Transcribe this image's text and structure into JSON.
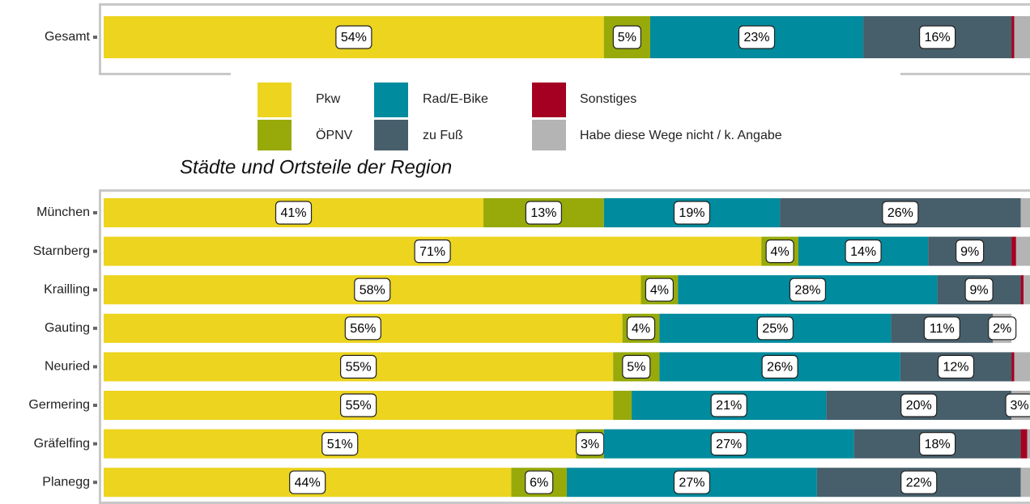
{
  "chart_data": [
    {
      "type": "stacked-bar-horizontal",
      "categories": [
        "Gesamt"
      ],
      "xlim": [
        0,
        100
      ],
      "series": [
        {
          "name": "Pkw",
          "color": "#ecd41f",
          "values": [
            54
          ],
          "value_labels": [
            "54%"
          ]
        },
        {
          "name": "ÖPNV",
          "color": "#97aa0a",
          "values": [
            5
          ],
          "value_labels": [
            "5%"
          ]
        },
        {
          "name": "Rad/E-Bike",
          "color": "#008b9e",
          "values": [
            23
          ],
          "value_labels": [
            "23%"
          ]
        },
        {
          "name": "zu Fuß",
          "color": "#475f6b",
          "values": [
            16
          ],
          "value_labels": [
            "16%"
          ]
        },
        {
          "name": "Sonstiges",
          "color": "#a50021",
          "values": [
            0.3
          ],
          "value_labels": [
            null
          ]
        },
        {
          "name": "Habe diese Wege nicht / k. Angabe",
          "color": "#b4b4b4",
          "values": [
            1.7
          ],
          "value_labels": [
            null
          ]
        }
      ]
    },
    {
      "type": "stacked-bar-horizontal",
      "title": "Städte und Ortsteile der Region",
      "categories": [
        "München",
        "Starnberg",
        "Krailling",
        "Gauting",
        "Neuried",
        "Germering",
        "Gräfelfing",
        "Planegg"
      ],
      "xlim": [
        0,
        100
      ],
      "series": [
        {
          "color": "#ecd41f",
          "values": [
            41,
            71,
            58,
            56,
            55,
            55,
            51,
            44
          ],
          "value_labels": [
            "41%",
            "71%",
            "58%",
            "56%",
            "55%",
            "55%",
            "51%",
            "44%"
          ]
        },
        {
          "color": "#97aa0a",
          "values": [
            13,
            4,
            4,
            4,
            5,
            2,
            3,
            6
          ],
          "value_labels": [
            "13%",
            "4%",
            "4%",
            "4%",
            "5%",
            null,
            "3%",
            "6%"
          ]
        },
        {
          "color": "#008b9e",
          "values": [
            19,
            14,
            28,
            25,
            26,
            21,
            27,
            27
          ],
          "value_labels": [
            "19%",
            "14%",
            "28%",
            "25%",
            "26%",
            "21%",
            "27%",
            "27%"
          ]
        },
        {
          "color": "#475f6b",
          "values": [
            26,
            9,
            9,
            11,
            12,
            20,
            18,
            22
          ],
          "value_labels": [
            "26%",
            "9%",
            "9%",
            "11%",
            "12%",
            "20%",
            "18%",
            "22%"
          ]
        },
        {
          "color": "#a50021",
          "values": [
            0,
            0.5,
            0.3,
            0,
            0.3,
            0,
            0.7,
            0
          ],
          "value_labels": [
            null,
            null,
            null,
            null,
            null,
            null,
            null,
            null
          ]
        },
        {
          "color": "#b4b4b4",
          "values": [
            1,
            1.5,
            0.7,
            2,
            1.7,
            3,
            0.3,
            1.5
          ],
          "value_labels": [
            null,
            null,
            null,
            "2%",
            null,
            "3%",
            null,
            null
          ]
        }
      ]
    }
  ]
}
